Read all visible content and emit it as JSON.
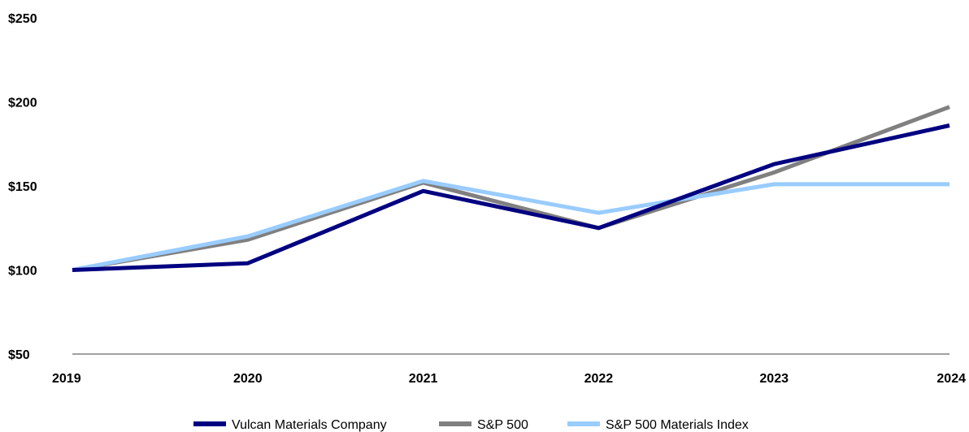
{
  "chart_data": {
    "type": "line",
    "x": [
      "2019",
      "2020",
      "2021",
      "2022",
      "2023",
      "2024"
    ],
    "yticks": [
      "$50",
      "$100",
      "$150",
      "$200",
      "$250"
    ],
    "ylim": [
      50,
      250
    ],
    "series": [
      {
        "name": "Vulcan Materials Company",
        "color": "#000080",
        "values": [
          100,
          104,
          147,
          125,
          163,
          186
        ]
      },
      {
        "name": "S&P 500",
        "color": "#808080",
        "values": [
          100,
          118,
          152,
          125,
          158,
          197
        ]
      },
      {
        "name": "S&P 500 Materials Index",
        "color": "#99ccff",
        "values": [
          100,
          120,
          153,
          134,
          151,
          151
        ]
      }
    ],
    "legend_position": "bottom-center",
    "grid": false
  }
}
